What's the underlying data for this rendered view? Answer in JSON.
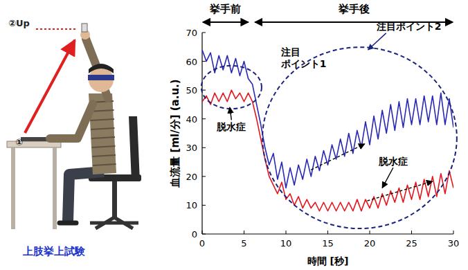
{
  "figure": {
    "labels": [
      "①",
      "②Up"
    ],
    "caption": "上肢挙上試験"
  },
  "chart_data": {
    "type": "line",
    "x_label": "時間 [秒]",
    "y_label": "血流量 [ml/分] (a.u.)",
    "x": [
      0,
      0.5,
      1,
      1.5,
      2,
      2.5,
      3,
      3.5,
      4,
      4.5,
      5,
      5.5,
      6,
      6.5,
      7,
      7.5,
      8,
      8.5,
      9,
      9.5,
      10,
      10.5,
      11,
      11.5,
      12,
      12.5,
      13,
      13.5,
      14,
      14.5,
      15,
      15.5,
      16,
      16.5,
      17,
      17.5,
      18,
      18.5,
      19,
      19.5,
      20,
      20.5,
      21,
      21.5,
      22,
      22.5,
      23,
      23.5,
      24,
      24.5,
      25,
      25.5,
      26,
      26.5,
      27,
      27.5,
      28,
      28.5,
      29,
      29.5,
      30
    ],
    "series": [
      {
        "color": "#2828b4",
        "values": [
          64,
          60,
          63,
          56,
          62,
          57,
          62,
          56,
          61,
          55,
          60,
          54,
          52,
          45,
          38,
          30,
          24,
          28,
          19,
          25,
          16,
          23,
          17,
          24,
          19,
          26,
          20,
          27,
          22,
          29,
          24,
          31,
          26,
          33,
          27,
          35,
          28,
          36,
          30,
          39,
          31,
          41,
          33,
          43,
          35,
          45,
          36,
          46,
          37,
          47,
          38,
          47,
          38,
          48,
          39,
          48,
          38,
          49,
          38,
          47,
          37
        ]
      },
      {
        "color": "#e8141c",
        "values": [
          46,
          48,
          45,
          49,
          46,
          49,
          46,
          50,
          47,
          49,
          46,
          49,
          46,
          40,
          33,
          26,
          20,
          17,
          14,
          18,
          12,
          14,
          10,
          13,
          9,
          12,
          9,
          11,
          8,
          11,
          8,
          11,
          8,
          11,
          8,
          11,
          8,
          12,
          8,
          12,
          9,
          13,
          9,
          14,
          10,
          15,
          11,
          16,
          11,
          17,
          12,
          18,
          12,
          19,
          13,
          20,
          13,
          21,
          14,
          22,
          16
        ]
      }
    ],
    "xlim": [
      0,
      30
    ],
    "xticks": [
      0,
      5,
      10,
      15,
      20,
      25,
      30
    ],
    "ylim": [
      0,
      70
    ],
    "yticks": [
      0,
      10,
      20,
      30,
      40,
      50,
      60,
      70
    ],
    "grid": false,
    "spans": [
      {
        "text": "挙手前",
        "from": 0,
        "to": 5.6
      },
      {
        "text": "挙手後",
        "from": 6.2,
        "to": 30
      }
    ],
    "regions": [
      {
        "lines": [
          "注目",
          "ポイント1"
        ],
        "label_x": 9.4,
        "label_y": 62,
        "cx": 3.5,
        "cy": 51,
        "rx": 3.6,
        "ry": 7.5
      },
      {
        "lines": [
          "注目ポイント2"
        ],
        "label_x": 20.8,
        "label_y": 71,
        "arrow_to": [
          19.8,
          64
        ],
        "cx": 18.8,
        "cy": 33.4,
        "rx": 11.6,
        "ry": 31.5
      }
    ],
    "labels": [
      {
        "text": "脱水症",
        "x": 3.5,
        "y": 36,
        "arrow_to": [
          3.3,
          44
        ]
      },
      {
        "text": "脱水症",
        "x": 22.8,
        "y": 24,
        "arrow_to": [
          21.5,
          16
        ]
      }
    ],
    "trends": [
      {
        "from": [
          13,
          22.3
        ],
        "to": [
          19.4,
          31.3
        ]
      },
      {
        "from": [
          19.7,
          11.5
        ],
        "to": [
          27.5,
          18.3
        ]
      }
    ]
  }
}
